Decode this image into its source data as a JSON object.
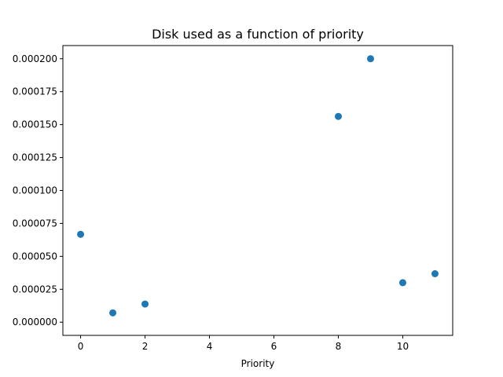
{
  "chart_data": {
    "type": "scatter",
    "title": "Disk used as a function of priority",
    "xlabel": "Priority",
    "ylabel": "",
    "xlim": [
      -0.55,
      11.55
    ],
    "ylim": [
      -1e-05,
      0.00021
    ],
    "xticks": [
      0,
      2,
      4,
      6,
      8,
      10
    ],
    "xtick_labels": [
      "0",
      "2",
      "4",
      "6",
      "8",
      "10"
    ],
    "yticks": [
      0,
      2.5e-05,
      5e-05,
      7.5e-05,
      0.0001,
      0.000125,
      0.00015,
      0.000175,
      0.0002
    ],
    "ytick_labels": [
      "0.000000",
      "0.000025",
      "0.000050",
      "0.000075",
      "0.000100",
      "0.000125",
      "0.000150",
      "0.000175",
      "0.000200"
    ],
    "grid": false,
    "series": [
      {
        "color": "#1f77b4",
        "points": [
          {
            "x": 0,
            "y": 6.67e-05
          },
          {
            "x": 1,
            "y": 7.1e-06
          },
          {
            "x": 2,
            "y": 1.38e-05
          },
          {
            "x": 8,
            "y": 0.0001562
          },
          {
            "x": 9,
            "y": 0.0002
          },
          {
            "x": 10,
            "y": 3e-05
          },
          {
            "x": 11,
            "y": 3.68e-05
          }
        ]
      }
    ]
  }
}
